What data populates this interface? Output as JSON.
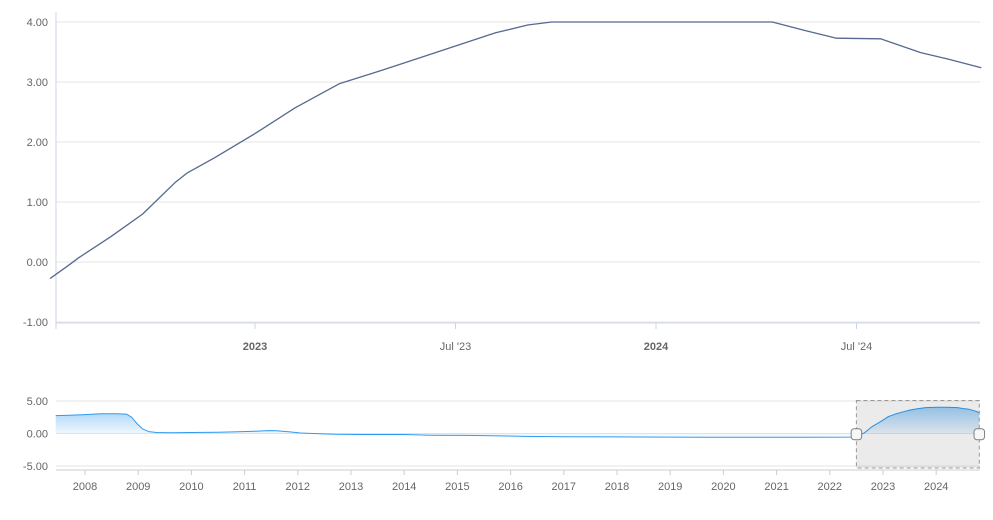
{
  "colors": {
    "main_line": "#56698f",
    "nav_line": "#2e9af0",
    "grid": "#e6e6e6",
    "axis": "#ccd6eb",
    "nav_axis": "#cccccc",
    "label": "#666666",
    "selection_mask": "rgba(0,0,0,0.08)",
    "selection_border": "#999999",
    "handle_fill": "#f7f7f7",
    "handle_stroke": "#808080",
    "background": "#ffffff"
  },
  "chart_data": [
    {
      "id": "main-chart",
      "type": "line",
      "title": "",
      "xlabel": "",
      "ylabel": "",
      "grid": true,
      "legend": "none",
      "xlim": [
        2022.49,
        2024.82
      ],
      "ylim": [
        -1.02,
        4.2
      ],
      "y_ticks": [
        {
          "v": 4,
          "label": "4.00"
        },
        {
          "v": 3,
          "label": "3.00"
        },
        {
          "v": 2,
          "label": "2.00"
        },
        {
          "v": 1,
          "label": "1.00"
        },
        {
          "v": 0,
          "label": "0.00"
        },
        {
          "v": -1,
          "label": "-1.00"
        }
      ],
      "x_ticks": [
        {
          "t": 2023.0,
          "label": "2023",
          "bold": true
        },
        {
          "t": 2023.5,
          "label": "Jul '23",
          "bold": false
        },
        {
          "t": 2024.0,
          "label": "2024",
          "bold": true
        },
        {
          "t": 2024.5,
          "label": "Jul '24",
          "bold": false
        }
      ],
      "points": [
        [
          2022.49,
          -0.27
        ],
        [
          2022.53,
          -0.08
        ],
        [
          2022.56,
          0.07
        ],
        [
          2022.64,
          0.42
        ],
        [
          2022.72,
          0.8
        ],
        [
          2022.8,
          1.32
        ],
        [
          2022.83,
          1.48
        ],
        [
          2022.9,
          1.74
        ],
        [
          2023.0,
          2.14
        ],
        [
          2023.1,
          2.57
        ],
        [
          2023.21,
          2.97
        ],
        [
          2023.3,
          3.16
        ],
        [
          2023.4,
          3.38
        ],
        [
          2023.5,
          3.6
        ],
        [
          2023.6,
          3.82
        ],
        [
          2023.68,
          3.95
        ],
        [
          2023.74,
          4.0
        ],
        [
          2024.29,
          4.0
        ],
        [
          2024.37,
          3.86
        ],
        [
          2024.45,
          3.73
        ],
        [
          2024.56,
          3.72
        ],
        [
          2024.66,
          3.49
        ],
        [
          2024.73,
          3.38
        ],
        [
          2024.81,
          3.24
        ]
      ]
    },
    {
      "id": "navigator",
      "type": "area",
      "title": "",
      "grid": true,
      "legend": "none",
      "xlim": [
        2007.45,
        2024.83
      ],
      "ylim": [
        -5.31,
        5.46
      ],
      "y_ticks": [
        {
          "v": 5,
          "label": "5.00"
        },
        {
          "v": 0,
          "label": "0.00"
        },
        {
          "v": -5,
          "label": "-5.00"
        }
      ],
      "x_ticks": [
        {
          "t": 2008,
          "label": "2008"
        },
        {
          "t": 2009,
          "label": "2009"
        },
        {
          "t": 2010,
          "label": "2010"
        },
        {
          "t": 2011,
          "label": "2011"
        },
        {
          "t": 2012,
          "label": "2012"
        },
        {
          "t": 2013,
          "label": "2013"
        },
        {
          "t": 2014,
          "label": "2014"
        },
        {
          "t": 2015,
          "label": "2015"
        },
        {
          "t": 2016,
          "label": "2016"
        },
        {
          "t": 2017,
          "label": "2017"
        },
        {
          "t": 2018,
          "label": "2018"
        },
        {
          "t": 2019,
          "label": "2019"
        },
        {
          "t": 2020,
          "label": "2020"
        },
        {
          "t": 2021,
          "label": "2021"
        },
        {
          "t": 2022,
          "label": "2022"
        },
        {
          "t": 2023,
          "label": "2023"
        },
        {
          "t": 2024,
          "label": "2024"
        }
      ],
      "points": [
        [
          2007.45,
          2.75
        ],
        [
          2007.7,
          2.8
        ],
        [
          2008.0,
          2.9
        ],
        [
          2008.3,
          3.05
        ],
        [
          2008.6,
          3.05
        ],
        [
          2008.78,
          2.98
        ],
        [
          2008.88,
          2.5
        ],
        [
          2008.98,
          1.5
        ],
        [
          2009.08,
          0.7
        ],
        [
          2009.2,
          0.3
        ],
        [
          2009.35,
          0.16
        ],
        [
          2009.6,
          0.13
        ],
        [
          2010.0,
          0.15
        ],
        [
          2010.5,
          0.2
        ],
        [
          2010.8,
          0.25
        ],
        [
          2011.2,
          0.35
        ],
        [
          2011.45,
          0.45
        ],
        [
          2011.6,
          0.42
        ],
        [
          2011.85,
          0.25
        ],
        [
          2012.05,
          0.08
        ],
        [
          2012.35,
          -0.02
        ],
        [
          2012.7,
          -0.12
        ],
        [
          2013.2,
          -0.15
        ],
        [
          2014.0,
          -0.16
        ],
        [
          2014.5,
          -0.26
        ],
        [
          2015.2,
          -0.3
        ],
        [
          2015.95,
          -0.38
        ],
        [
          2016.25,
          -0.45
        ],
        [
          2017.0,
          -0.5
        ],
        [
          2018.0,
          -0.52
        ],
        [
          2019.7,
          -0.57
        ],
        [
          2020.5,
          -0.57
        ],
        [
          2021.5,
          -0.57
        ],
        [
          2022.4,
          -0.55
        ],
        [
          2022.55,
          -0.25
        ],
        [
          2022.65,
          0.1
        ],
        [
          2022.8,
          1.1
        ],
        [
          2022.95,
          1.8
        ],
        [
          2023.1,
          2.6
        ],
        [
          2023.25,
          3.05
        ],
        [
          2023.45,
          3.5
        ],
        [
          2023.6,
          3.75
        ],
        [
          2023.8,
          3.98
        ],
        [
          2024.0,
          4.05
        ],
        [
          2024.2,
          4.05
        ],
        [
          2024.4,
          3.98
        ],
        [
          2024.5,
          3.85
        ],
        [
          2024.62,
          3.72
        ],
        [
          2024.72,
          3.5
        ],
        [
          2024.81,
          3.22
        ]
      ],
      "selection": {
        "from": 2022.5,
        "to": 2024.81
      }
    }
  ]
}
